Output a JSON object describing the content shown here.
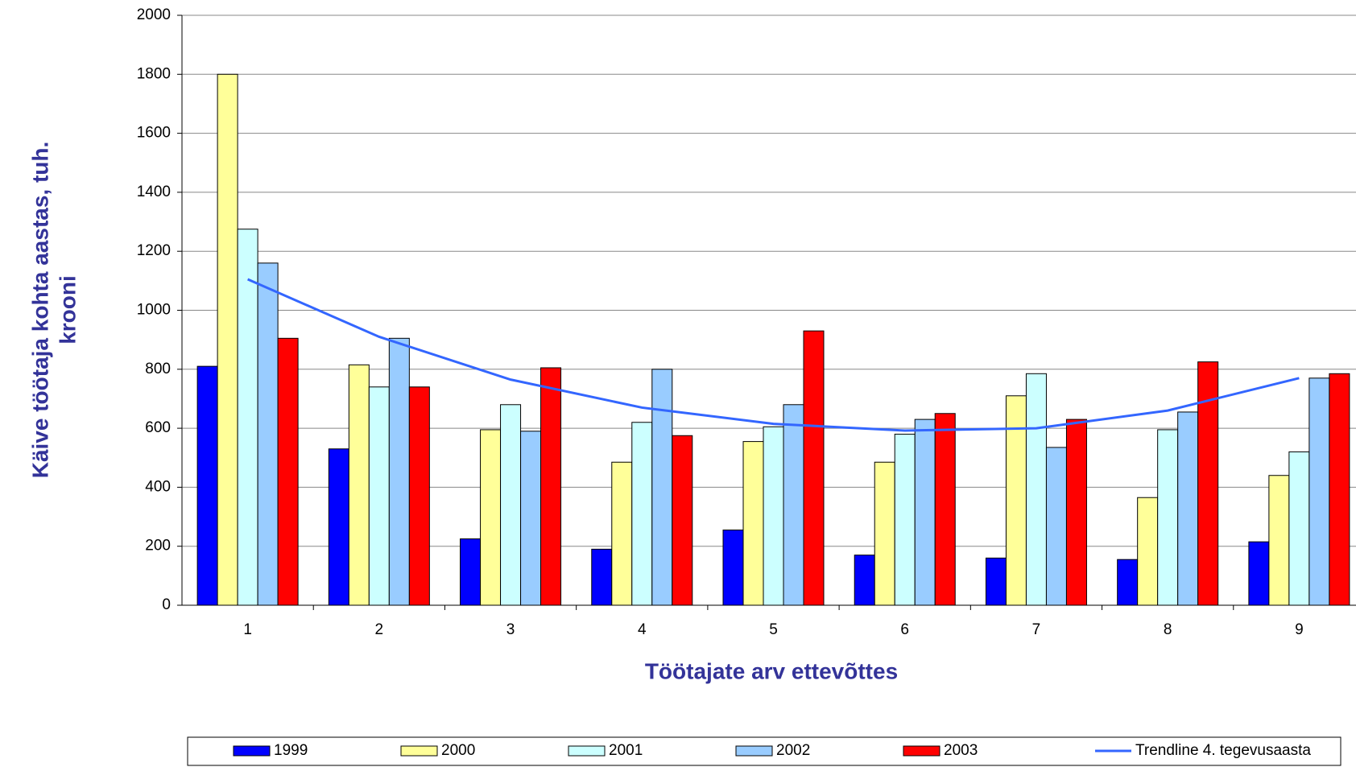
{
  "chart_data": {
    "type": "bar",
    "categories": [
      "1",
      "2",
      "3",
      "4",
      "5",
      "6",
      "7",
      "8",
      "9"
    ],
    "x_label": "Töötajate arv ettevõttes",
    "y_label": [
      "Käive töötaja kohta aastas, tuh.",
      "krooni"
    ],
    "ylim": [
      0,
      2000
    ],
    "yticks": [
      0,
      200,
      400,
      600,
      800,
      1000,
      1200,
      1400,
      1600,
      1800,
      2000
    ],
    "grid": true,
    "series": [
      {
        "name": "1999",
        "color": "#0000ff",
        "values": [
          810,
          530,
          225,
          190,
          255,
          170,
          160,
          155,
          215
        ]
      },
      {
        "name": "2000",
        "color": "#ffff99",
        "values": [
          1800,
          815,
          595,
          485,
          555,
          485,
          710,
          365,
          440
        ]
      },
      {
        "name": "2001",
        "color": "#ccffff",
        "values": [
          1275,
          740,
          680,
          620,
          605,
          580,
          785,
          595,
          520
        ]
      },
      {
        "name": "2002",
        "color": "#99ccff",
        "values": [
          1160,
          905,
          590,
          800,
          680,
          630,
          535,
          655,
          770
        ]
      },
      {
        "name": "2003",
        "color": "#ff0000",
        "values": [
          905,
          740,
          805,
          575,
          930,
          650,
          630,
          825,
          785
        ]
      }
    ],
    "trendline": {
      "name": "Trendline 4. tegevusaasta",
      "color": "#3366ff",
      "values": [
        1105,
        910,
        765,
        670,
        615,
        592,
        600,
        660,
        770
      ]
    }
  }
}
